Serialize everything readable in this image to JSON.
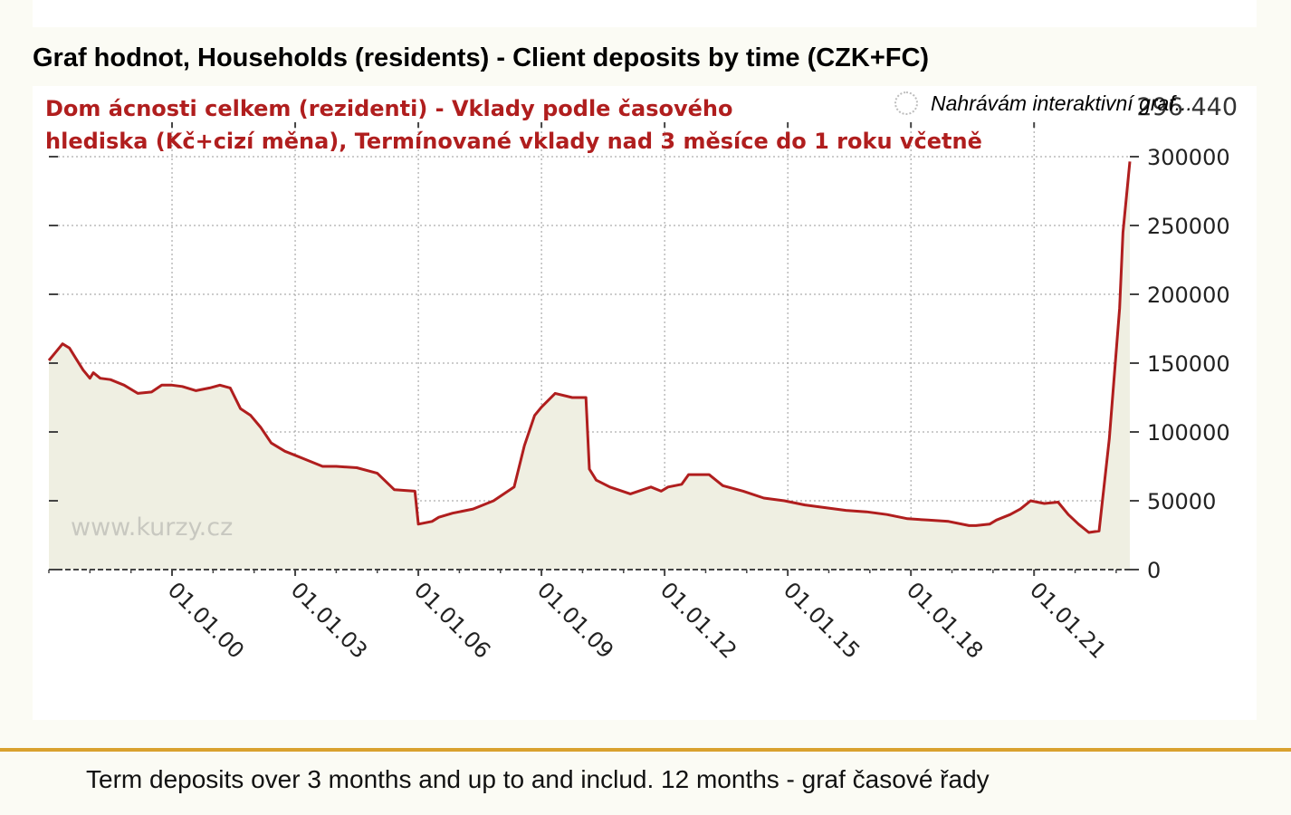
{
  "page": {
    "title": "Graf hodnot, Households (residents) - Client deposits by time (CZK+FC)",
    "loading_text": "Nahrávám interaktivní graf...",
    "footer_caption": "Term deposits over 3 months and up to and includ. 12 months - graf časové řady"
  },
  "colors": {
    "line": "#b01e1e",
    "area_fill": "#efefe2",
    "divider": "#d9a12e",
    "title_red": "#b01e1e",
    "watermark": "#c8c8c0"
  },
  "chart_data": {
    "type": "area",
    "title": "Dom ácnosti celkem  (rezidenti) - Vklady podle časového",
    "title_line2": "hlediska (Kč+cizí měna), Termínované vklady nad 3 měsíce do 1 roku včetně",
    "watermark": "www.kurzy.cz",
    "last_value_label": "296 440",
    "xlabel": "",
    "ylabel": "",
    "ylim": [
      0,
      300000
    ],
    "xlim": [
      "1997-01",
      "2023-05"
    ],
    "yticks": [
      0,
      50000,
      100000,
      150000,
      200000,
      250000,
      300000
    ],
    "ytick_labels": [
      "0",
      "50000",
      "100000",
      "150000",
      "200000",
      "250000",
      "300000"
    ],
    "xticks": [
      "2000-01",
      "2003-01",
      "2006-01",
      "2009-01",
      "2012-01",
      "2015-01",
      "2018-01",
      "2021-01"
    ],
    "xtick_labels": [
      "01.01.00",
      "01.01.03",
      "01.01.06",
      "01.01.09",
      "01.01.12",
      "01.01.15",
      "01.01.18",
      "01.01.21"
    ],
    "grid": true,
    "series": [
      {
        "x": [
          "1997-01",
          "1997-03",
          "1997-05",
          "1997-07",
          "1997-09",
          "1997-11",
          "1998-01",
          "1998-02",
          "1998-04",
          "1998-07",
          "1998-11",
          "1999-03",
          "1999-07",
          "1999-10",
          "2000-01",
          "2000-04",
          "2000-08",
          "2000-12",
          "2001-03",
          "2001-06",
          "2001-09",
          "2001-12",
          "2002-03",
          "2002-06",
          "2002-10",
          "2002-12",
          "2003-01",
          "2003-04",
          "2003-09",
          "2004-01",
          "2004-07",
          "2005-01",
          "2005-06",
          "2005-12",
          "2006-01",
          "2006-05",
          "2006-07",
          "2006-11",
          "2007-05",
          "2007-11",
          "2008-05",
          "2008-08",
          "2008-11",
          "2009-01",
          "2009-05",
          "2009-10",
          "2010-02",
          "2010-03",
          "2010-05",
          "2010-09",
          "2011-03",
          "2011-09",
          "2011-12",
          "2012-02",
          "2012-06",
          "2012-08",
          "2012-12",
          "2013-02",
          "2013-06",
          "2013-12",
          "2014-06",
          "2014-12",
          "2015-06",
          "2015-12",
          "2016-06",
          "2016-12",
          "2017-06",
          "2017-12",
          "2018-06",
          "2018-12",
          "2019-06",
          "2019-08",
          "2019-12",
          "2020-02",
          "2020-06",
          "2020-09",
          "2020-12",
          "2021-04",
          "2021-08",
          "2021-11",
          "2022-02",
          "2022-05",
          "2022-08",
          "2022-11",
          "2023-02",
          "2023-03",
          "2023-05"
        ],
        "values": [
          152000,
          158000,
          164000,
          161000,
          153000,
          145000,
          139000,
          143000,
          139000,
          138000,
          134000,
          128000,
          129000,
          134000,
          134000,
          133000,
          130000,
          132000,
          134000,
          132000,
          117000,
          112000,
          103000,
          92000,
          86000,
          84000,
          83000,
          80000,
          75000,
          75000,
          74000,
          70000,
          58000,
          57000,
          33000,
          35000,
          38000,
          41000,
          44000,
          50000,
          60000,
          90000,
          112000,
          118000,
          128000,
          125000,
          125000,
          73000,
          65000,
          60000,
          55000,
          60000,
          57000,
          60000,
          62000,
          69000,
          69000,
          69000,
          61000,
          57000,
          52000,
          50000,
          47000,
          45000,
          43000,
          42000,
          40000,
          37000,
          36000,
          35000,
          32000,
          32000,
          33000,
          36000,
          40000,
          44000,
          50000,
          48000,
          49000,
          40000,
          33000,
          27000,
          28000,
          95000,
          190000,
          245000,
          296440
        ]
      }
    ]
  }
}
